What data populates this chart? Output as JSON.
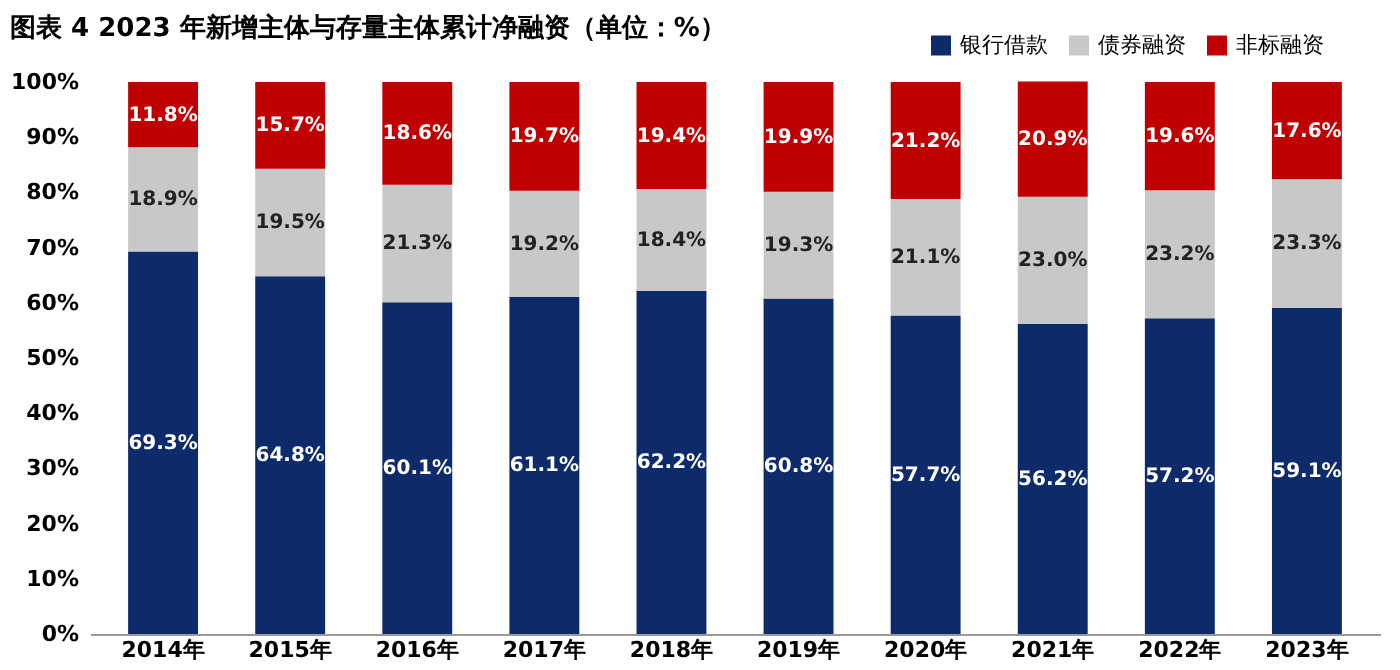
{
  "chart_data": {
    "type": "bar",
    "stacked": true,
    "title": "图表 4 2023 年新增主体与存量主体累计净融资（单位：%）",
    "categories": [
      "2014年",
      "2015年",
      "2016年",
      "2017年",
      "2018年",
      "2019年",
      "2020年",
      "2021年",
      "2022年",
      "2023年"
    ],
    "series": [
      {
        "name": "银行借款",
        "color": "#0d2a6b",
        "values": [
          69.3,
          64.8,
          60.1,
          61.1,
          62.2,
          60.8,
          57.7,
          56.2,
          57.2,
          59.1
        ]
      },
      {
        "name": "债券融资",
        "color": "#c8c8c8",
        "values": [
          18.9,
          19.5,
          21.3,
          19.2,
          18.4,
          19.3,
          21.1,
          23.0,
          23.2,
          23.3
        ]
      },
      {
        "name": "非标融资",
        "color": "#c00000",
        "values": [
          11.8,
          15.7,
          18.6,
          19.7,
          19.4,
          19.9,
          21.2,
          20.9,
          19.6,
          17.6
        ]
      }
    ],
    "value_labels": [
      [
        "69.3%",
        "64.8%",
        "60.1%",
        "61.1%",
        "62.2%",
        "60.8%",
        "57.7%",
        "56.2%",
        "57.2%",
        "59.1%"
      ],
      [
        "18.9%",
        "19.5%",
        "21.3%",
        "19.2%",
        "18.4%",
        "19.3%",
        "21.1%",
        "23.0%",
        "23.2%",
        "23.3%"
      ],
      [
        "11.8%",
        "15.7%",
        "18.6%",
        "19.7%",
        "19.4%",
        "19.9%",
        "21.2%",
        "20.9%",
        "19.6%",
        "17.6%"
      ]
    ],
    "ylim": [
      0,
      100
    ],
    "yticks": [
      {
        "value": 0,
        "label": "0%"
      },
      {
        "value": 10,
        "label": "10%"
      },
      {
        "value": 20,
        "label": "20%"
      },
      {
        "value": 30,
        "label": "30%"
      },
      {
        "value": 40,
        "label": "40%"
      },
      {
        "value": 50,
        "label": "50%"
      },
      {
        "value": 60,
        "label": "60%"
      },
      {
        "value": 70,
        "label": "70%"
      },
      {
        "value": 80,
        "label": "80%"
      },
      {
        "value": 90,
        "label": "90%"
      },
      {
        "value": 100,
        "label": "100%"
      }
    ],
    "grid": false,
    "legend": "top right"
  }
}
